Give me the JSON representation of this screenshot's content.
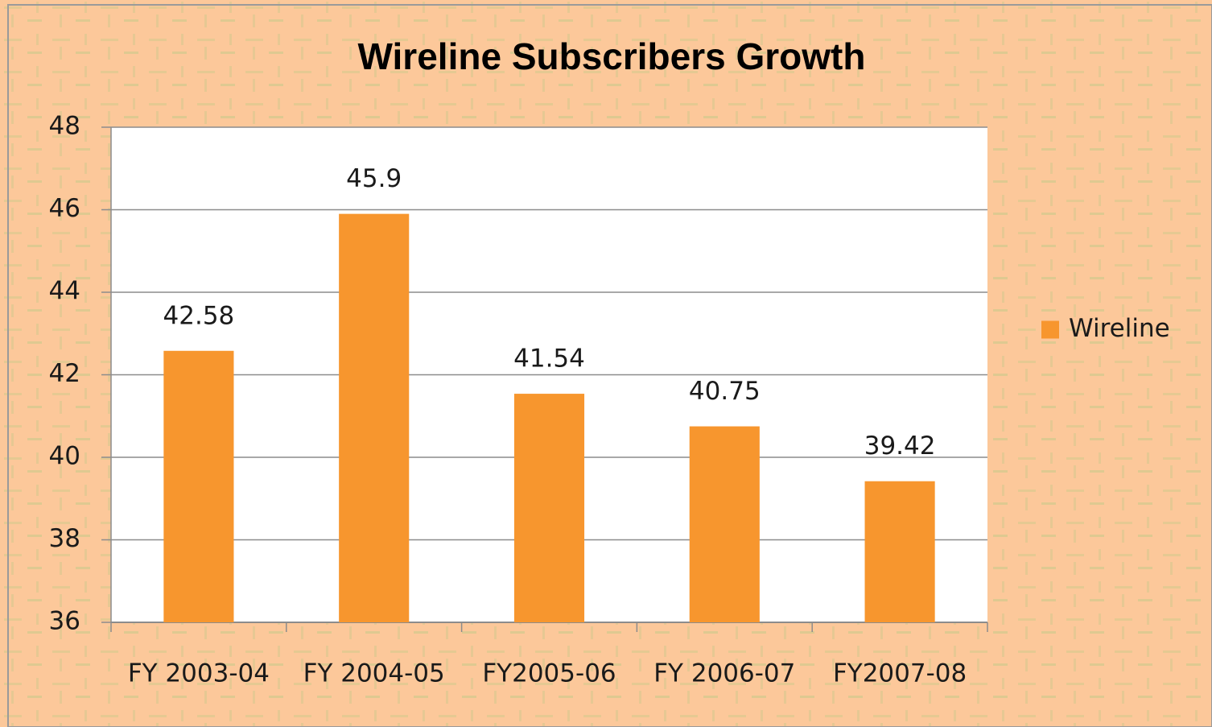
{
  "chart_data": {
    "type": "bar",
    "title": "Wireline Subscribers Growth",
    "categories": [
      "FY 2003-04",
      "FY 2004-05",
      "FY2005-06",
      "FY 2006-07",
      "FY2007-08"
    ],
    "series": [
      {
        "name": "Wireline",
        "color": "#f7962e",
        "values": [
          42.58,
          45.9,
          41.54,
          40.75,
          39.42
        ]
      }
    ],
    "ylim": [
      36,
      48
    ],
    "yticks": [
      36,
      38,
      40,
      42,
      44,
      46,
      48
    ],
    "grid": true,
    "legend": "right"
  }
}
